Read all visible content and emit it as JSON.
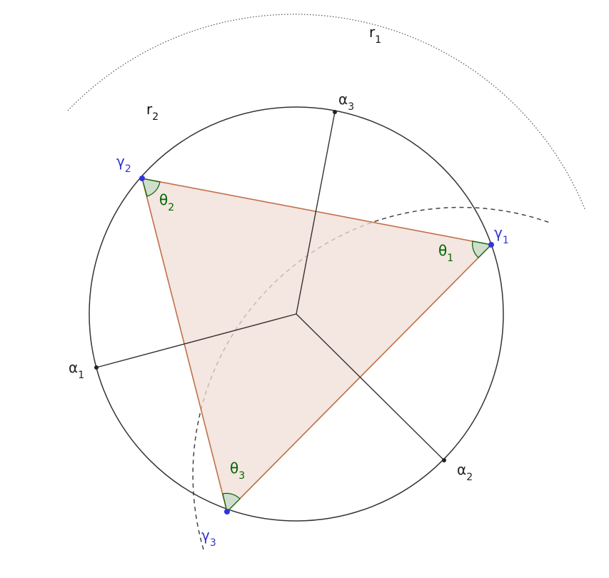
{
  "labels": {
    "r1": {
      "base": "r",
      "sub": "1"
    },
    "r2": {
      "base": "r",
      "sub": "2"
    },
    "alpha1": {
      "base": "α",
      "sub": "1"
    },
    "alpha2": {
      "base": "α",
      "sub": "2"
    },
    "alpha3": {
      "base": "α",
      "sub": "3"
    },
    "gamma1": {
      "base": "γ",
      "sub": "1"
    },
    "gamma2": {
      "base": "γ",
      "sub": "2"
    },
    "gamma3": {
      "base": "γ",
      "sub": "3"
    },
    "theta1": {
      "base": "θ",
      "sub": "1"
    },
    "theta2": {
      "base": "θ",
      "sub": "2"
    },
    "theta3": {
      "base": "θ",
      "sub": "3"
    }
  },
  "colors": {
    "circle": "#333333",
    "triangle_fill": "#f0ddd6",
    "triangle_stroke": "#c0704a",
    "point_blue": "#3333dd",
    "label_blue": "#3333cc",
    "angle_green": "#006600",
    "angle_fill": "#c8dcc8",
    "dashed": "#444444"
  }
}
